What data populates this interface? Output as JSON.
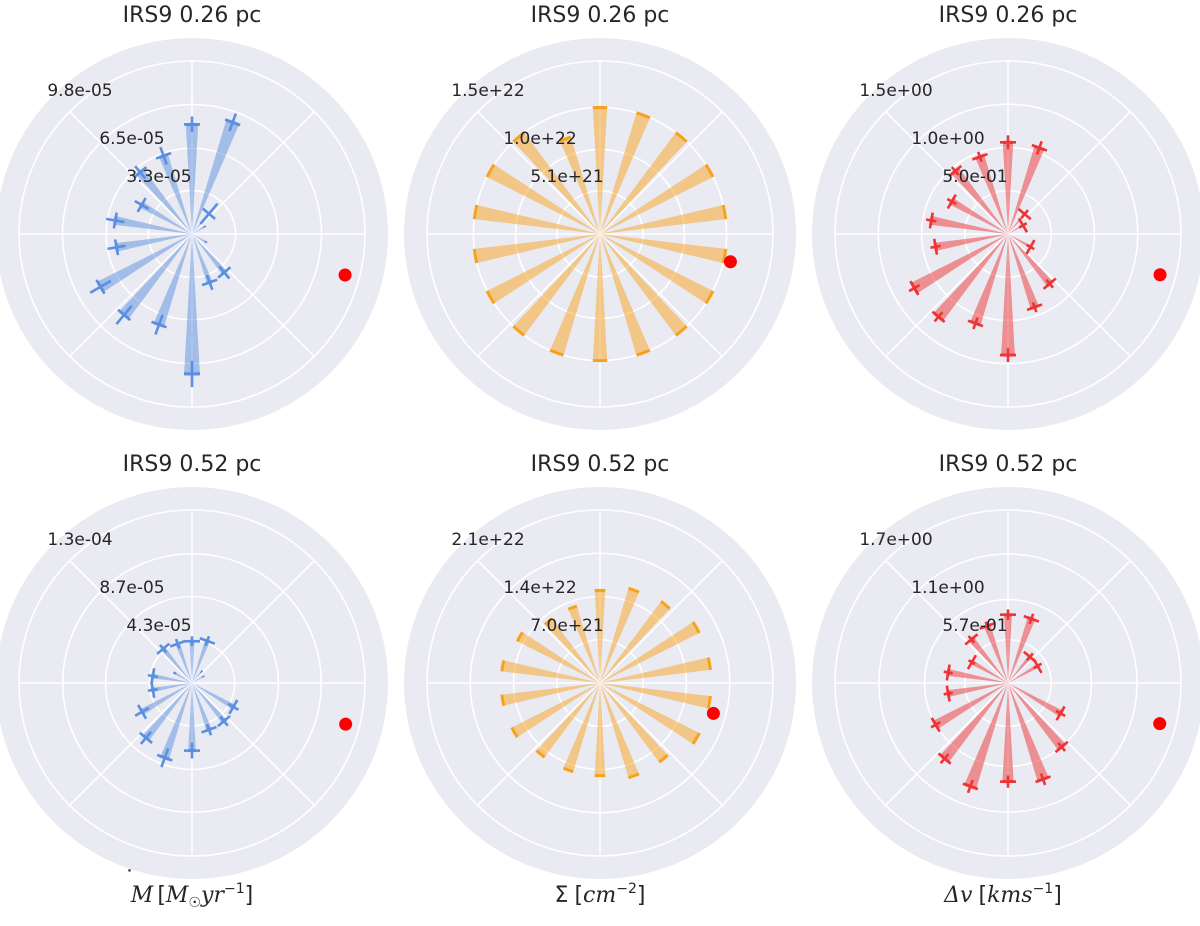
{
  "colors": {
    "panel_bg": "#eaeaf2",
    "grid": "#ffffff",
    "mdot": "#5b8fe0",
    "sigma": "#f7a21b",
    "dv": "#ee3434",
    "marker": "#ff0000"
  },
  "column_labels": [
    {
      "base": "M",
      "sup_dot": "˙",
      "unit_pre": "[",
      "unit_it": "M",
      "unit_sub": "☉",
      "unit_it2": "yr",
      "unit_exp": "−1",
      "unit_post": "]"
    },
    {
      "base": "Σ",
      "unit_pre": "[",
      "unit_it": "cm",
      "unit_exp": "−2",
      "unit_post": "]"
    },
    {
      "base": "Δv",
      "unit_pre": "[",
      "unit_it": "kms",
      "unit_exp": "−1",
      "unit_post": "]"
    }
  ],
  "chart_data": [
    {
      "type": "polar-bar",
      "title": "IRS9 0.26 pc",
      "quantity": "mdot",
      "rmax": 0.000131,
      "rings": [
        3.3e-05,
        6.5e-05,
        9.8e-05
      ],
      "ring_labels": [
        "3.3e-05",
        "6.5e-05",
        "9.8e-05"
      ],
      "theta_deg": [
        90,
        70,
        50,
        30,
        10,
        -10,
        -30,
        -50,
        -70,
        -90,
        -110,
        -130,
        -150,
        -170,
        170,
        150,
        130,
        110
      ],
      "values": [
        8.3e-05,
        9e-05,
        2e-05,
        1.1e-05,
        0,
        0,
        1.2e-05,
        3.8e-05,
        3.9e-05,
        0.000106,
        7.3e-05,
        8e-05,
        8e-05,
        5.8e-05,
        5.9e-05,
        4.4e-05,
        6.1e-05,
        6.3e-05
      ],
      "errors": [
        6e-06,
        7e-06,
        1e-05,
        0,
        0,
        0,
        0,
        6e-06,
        6e-06,
        1e-05,
        8e-06,
        9e-06,
        9e-06,
        7e-06,
        7e-06,
        6e-06,
        6e-06,
        7e-06
      ],
      "marker_theta_deg": -15,
      "marker_r": 0.00012
    },
    {
      "type": "polar-bar",
      "title": "IRS9 0.26 pc",
      "quantity": "sigma",
      "rmax": 2.05e+22,
      "rings": [
        5.1e+21,
        1e+22,
        1.5e+22
      ],
      "ring_labels": [
        "5.1e+21",
        "1.0e+22",
        "1.5e+22"
      ],
      "theta_deg": [
        90,
        70,
        50,
        30,
        10,
        -10,
        -30,
        -50,
        -70,
        -90,
        -110,
        -130,
        -150,
        -170,
        170,
        150,
        130,
        110
      ],
      "values": [
        1.5e+22,
        1.5e+22,
        1.5e+22,
        1.5e+22,
        1.5e+22,
        1.5e+22,
        1.5e+22,
        1.5e+22,
        1.5e+22,
        1.5e+22,
        1.5e+22,
        1.5e+22,
        1.5e+22,
        1.5e+22,
        1.5e+22,
        1.5e+22,
        1.5e+22,
        1.2e+22
      ],
      "errors": [
        0,
        0,
        0,
        0,
        0,
        0,
        0,
        0,
        0,
        0,
        0,
        0,
        0,
        0,
        0,
        0,
        0,
        0
      ],
      "marker_theta_deg": -12,
      "marker_r": 1.58e+22
    },
    {
      "type": "polar-bar",
      "title": "IRS9 0.26 pc",
      "quantity": "dv",
      "rmax": 2.0,
      "rings": [
        0.5,
        1.0,
        1.5
      ],
      "ring_labels": [
        "5.0e-01",
        "1.0e+00",
        "1.5e+00"
      ],
      "theta_deg": [
        90,
        70,
        50,
        30,
        10,
        -10,
        -30,
        -50,
        -70,
        -90,
        -110,
        -130,
        -150,
        -170,
        170,
        150,
        130,
        110
      ],
      "values": [
        1.06,
        1.06,
        0.3,
        0.2,
        0,
        0,
        0.3,
        0.75,
        0.9,
        1.4,
        1.1,
        1.25,
        1.25,
        0.85,
        0.9,
        0.75,
        0.95,
        0.95
      ],
      "errors": [
        0.08,
        0.08,
        0.06,
        0.05,
        0,
        0,
        0.05,
        0.06,
        0.06,
        0.08,
        0.07,
        0.07,
        0.07,
        0.06,
        0.06,
        0.06,
        0.06,
        0.06
      ],
      "marker_theta_deg": -15,
      "marker_r": 1.82
    },
    {
      "type": "polar-bar",
      "title": "IRS9 0.52 pc",
      "quantity": "mdot",
      "rmax": 0.000174,
      "rings": [
        4.3e-05,
        8.7e-05,
        0.00013
      ],
      "ring_labels": [
        "4.3e-05",
        "8.7e-05",
        "1.3e-04"
      ],
      "theta_deg": [
        90,
        70,
        50,
        30,
        10,
        -10,
        -30,
        -50,
        -70,
        -90,
        -110,
        -130,
        -150,
        -170,
        170,
        150,
        130,
        110
      ],
      "values": [
        4.2e-05,
        4.5e-05,
        1.5e-05,
        1.3e-05,
        0,
        0,
        4.8e-05,
        5e-05,
        5e-05,
        6.8e-05,
        8e-05,
        7.2e-05,
        5.8e-05,
        4e-05,
        4e-05,
        2e-05,
        4.5e-05,
        4.2e-05
      ],
      "errors": [
        5e-06,
        5e-06,
        0,
        0,
        0,
        0,
        6e-06,
        6e-06,
        6e-06,
        8e-06,
        1e-05,
        8e-06,
        8e-06,
        5e-06,
        5e-06,
        0,
        5e-06,
        5e-06
      ],
      "marker_theta_deg": -15,
      "marker_r": 0.00016
    },
    {
      "type": "polar-bar",
      "title": "IRS9 0.52 pc",
      "quantity": "sigma",
      "rmax": 2.8e+22,
      "rings": [
        7e+21,
        1.4e+22,
        2.1e+22
      ],
      "ring_labels": [
        "7.0e+21",
        "1.4e+22",
        "2.1e+22"
      ],
      "theta_deg": [
        90,
        70,
        50,
        30,
        10,
        -10,
        -30,
        -50,
        -70,
        -90,
        -110,
        -130,
        -150,
        -170,
        170,
        150,
        130,
        110
      ],
      "values": [
        1.5e+22,
        1.6e+22,
        1.65e+22,
        1.8e+22,
        1.8e+22,
        1.8e+22,
        1.8e+22,
        1.6e+22,
        1.6e+22,
        1.5e+22,
        1.5e+22,
        1.5e+22,
        1.6e+22,
        1.6e+22,
        1.6e+22,
        1.5e+22,
        1.3e+22,
        1.3e+22
      ],
      "errors": [
        0,
        0,
        0,
        0,
        0,
        0,
        0,
        0,
        0,
        0,
        0,
        0,
        0,
        0,
        0,
        0,
        0,
        0
      ],
      "marker_theta_deg": -15,
      "marker_r": 1.9e+22
    },
    {
      "type": "polar-bar",
      "title": "IRS9 0.52 pc",
      "quantity": "dv",
      "rmax": 2.28,
      "rings": [
        0.57,
        1.1,
        1.7
      ],
      "ring_labels": [
        "5.7e-01",
        "1.1e+00",
        "1.7e+00"
      ],
      "theta_deg": [
        90,
        70,
        50,
        30,
        10,
        -10,
        -30,
        -50,
        -70,
        -90,
        -110,
        -130,
        -150,
        -170,
        170,
        150,
        130,
        110
      ],
      "values": [
        0.9,
        0.9,
        0.45,
        0.45,
        0,
        0,
        0.8,
        1.1,
        1.35,
        1.3,
        1.45,
        1.3,
        1.1,
        0.8,
        0.8,
        0.55,
        0.75,
        0.8
      ],
      "errors": [
        0.07,
        0.07,
        0.06,
        0.06,
        0,
        0,
        0.07,
        0.07,
        0.08,
        0.08,
        0.09,
        0.08,
        0.07,
        0.06,
        0.06,
        0.05,
        0.06,
        0.06
      ],
      "marker_theta_deg": -15,
      "marker_r": 2.07
    }
  ]
}
